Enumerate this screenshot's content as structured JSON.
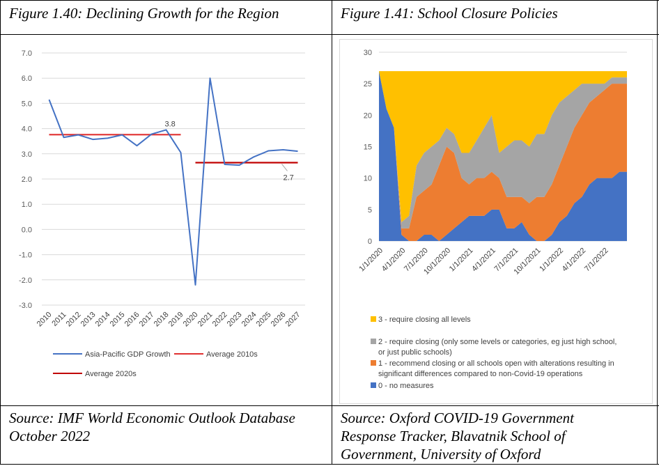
{
  "left": {
    "title": "Figure 1.40: Declining Growth for the Region",
    "source_line1": "Source: IMF World Economic Outlook Database",
    "source_line2": "October 2022"
  },
  "right": {
    "title": "Figure 1.41: School Closure Policies",
    "source_line1": "Source: Oxford COVID-19 Government",
    "source_line2": "Response Tracker, Blavatnik School of",
    "source_line3": "Government, University of Oxford"
  },
  "chart_data": [
    {
      "type": "line",
      "title": "",
      "x": [
        "2010",
        "2011",
        "2012",
        "2013",
        "2014",
        "2015",
        "2016",
        "2017",
        "2018",
        "2019",
        "2020",
        "2021",
        "2022",
        "2023",
        "2024",
        "2025",
        "2026",
        "2027"
      ],
      "yticks": [
        "7.0",
        "6.0",
        "5.0",
        "4.0",
        "3.0",
        "2.0",
        "1.0",
        "0.0",
        "-1.0",
        "-2.0",
        "-3.0"
      ],
      "ylim": [
        -3,
        7
      ],
      "series": [
        {
          "name": "Asia-Pacific GDP Growth",
          "color": "#4472C4",
          "values": [
            5.15,
            3.65,
            3.75,
            3.57,
            3.62,
            3.75,
            3.32,
            3.78,
            3.95,
            3.05,
            -2.2,
            6.0,
            2.58,
            2.55,
            2.88,
            3.12,
            3.16,
            3.1
          ]
        },
        {
          "name": "Average 2010s",
          "color": "#E03030",
          "x_range": [
            "2010",
            "2019"
          ],
          "value": 3.76
        },
        {
          "name": "Average 2020s",
          "color": "#C00000",
          "x_range": [
            "2020",
            "2027"
          ],
          "value": 2.65
        }
      ],
      "annotations": [
        {
          "text": "3.8",
          "x": "2018",
          "y": 3.76
        },
        {
          "text": "2.7",
          "x": "2026",
          "y": 2.65
        }
      ],
      "legend_position": "bottom"
    },
    {
      "type": "area",
      "stacked": true,
      "ylim": [
        0,
        30
      ],
      "yticks": [
        "30",
        "25",
        "20",
        "15",
        "10",
        "5",
        "0"
      ],
      "x_ticks": [
        "1/1/2020",
        "4/1/2020",
        "7/1/2020",
        "10/1/2020",
        "1/1/2021",
        "4/1/2021",
        "7/1/2021",
        "10/1/2021",
        "1/1/2022",
        "4/1/2022",
        "7/1/2022"
      ],
      "x_months": [
        "2020-01",
        "2020-02",
        "2020-03",
        "2020-04",
        "2020-05",
        "2020-06",
        "2020-07",
        "2020-08",
        "2020-09",
        "2020-10",
        "2020-11",
        "2020-12",
        "2021-01",
        "2021-02",
        "2021-03",
        "2021-04",
        "2021-05",
        "2021-06",
        "2021-07",
        "2021-08",
        "2021-09",
        "2021-10",
        "2021-11",
        "2021-12",
        "2022-01",
        "2022-02",
        "2022-03",
        "2022-04",
        "2022-05",
        "2022-06",
        "2022-07",
        "2022-08",
        "2022-09",
        "2022-10"
      ],
      "series": [
        {
          "name": "0 - no measures",
          "color": "#4472C4",
          "values": [
            27,
            21,
            18,
            1,
            0,
            0,
            1,
            1,
            0,
            1,
            2,
            3,
            4,
            4,
            4,
            5,
            5,
            2,
            2,
            3,
            1,
            0,
            0,
            1,
            3,
            4,
            6,
            7,
            9,
            10,
            10,
            10,
            11,
            11
          ]
        },
        {
          "name": "1 - recommend closing or all schools open with alterations resulting in significant differences compared to non-Covid-19 operations",
          "color": "#ED7D31",
          "values": [
            0,
            0,
            0,
            1,
            2,
            7,
            7,
            8,
            12,
            14,
            12,
            7,
            5,
            6,
            6,
            6,
            5,
            5,
            5,
            4,
            5,
            7,
            7,
            8,
            9,
            11,
            12,
            13,
            13,
            13,
            14,
            15,
            14,
            14
          ]
        },
        {
          "name": "2 - require closing (only some levels or categories, eg just high school, or just public schools)",
          "color": "#A5A5A5",
          "values": [
            0,
            0,
            0,
            1,
            2,
            5,
            6,
            6,
            4,
            3,
            3,
            4,
            5,
            6,
            8,
            9,
            4,
            8,
            9,
            9,
            9,
            10,
            10,
            11,
            10,
            8,
            6,
            5,
            3,
            2,
            1,
            1,
            1,
            1
          ]
        },
        {
          "name": "3 - require closing all levels",
          "color": "#FFC000",
          "values": [
            0,
            6,
            9,
            24,
            23,
            15,
            13,
            12,
            11,
            9,
            10,
            13,
            13,
            11,
            9,
            7,
            13,
            12,
            11,
            11,
            12,
            10,
            10,
            7,
            5,
            4,
            3,
            2,
            2,
            2,
            2,
            1,
            1,
            1
          ]
        }
      ],
      "legend_position": "bottom-left"
    }
  ]
}
